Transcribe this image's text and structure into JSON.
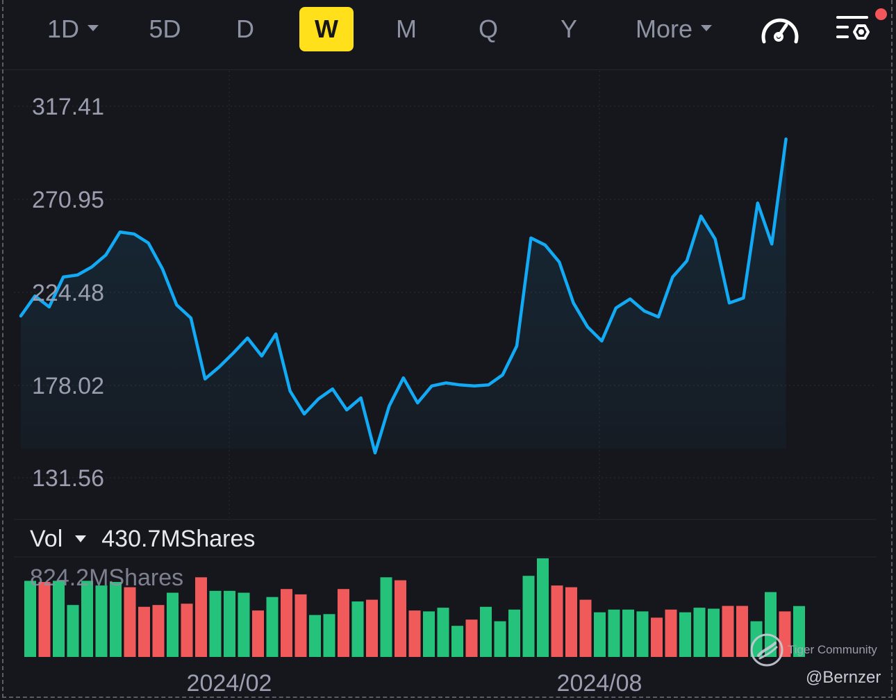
{
  "toolbar": {
    "tabs": [
      {
        "label": "1D",
        "dropdown": true
      },
      {
        "label": "5D"
      },
      {
        "label": "D"
      },
      {
        "label": "W",
        "active": true
      },
      {
        "label": "M"
      },
      {
        "label": "Q"
      },
      {
        "label": "Y"
      },
      {
        "label": "More",
        "dropdown": true
      }
    ],
    "icons": [
      "speedometer-icon",
      "settings-list-icon"
    ],
    "notification_dot_color": "#f2555a"
  },
  "volume_panel": {
    "label": "Vol",
    "current": "430.7MShares",
    "max_label": "824.2MShares"
  },
  "watermark": {
    "brand": "Tiger Community",
    "handle": "@Bernzer"
  },
  "chart_data": {
    "type": "line",
    "price_axis": {
      "ticks": [
        "317.41",
        "270.95",
        "224.48",
        "178.02",
        "131.56"
      ],
      "ylim": [
        131.56,
        317.41
      ]
    },
    "time_axis": {
      "ticks": [
        "2024/02",
        "2024/08"
      ]
    },
    "line_color": "#13aaf5",
    "prices": [
      212.5,
      222.5,
      217,
      232,
      233,
      237,
      243,
      254.5,
      253.5,
      249,
      236,
      218,
      211.5,
      181,
      187,
      194,
      201.5,
      192.5,
      203.5,
      175,
      163.5,
      171,
      176,
      165.5,
      171.5,
      144,
      167.5,
      181.5,
      169,
      177.5,
      179,
      178,
      177.5,
      178,
      183,
      197.5,
      251.5,
      248,
      239.5,
      219,
      207,
      200,
      216.5,
      221,
      215,
      212,
      232,
      240,
      262.5,
      251,
      219,
      221.5,
      269,
      248.5,
      301
    ],
    "volume_colors": {
      "up": "#24c27b",
      "down": "#f05a5a"
    },
    "volumes": [
      {
        "v": 753,
        "c": "up"
      },
      {
        "v": 742,
        "c": "down"
      },
      {
        "v": 753,
        "c": "up"
      },
      {
        "v": 514,
        "c": "up"
      },
      {
        "v": 753,
        "c": "up"
      },
      {
        "v": 707,
        "c": "up"
      },
      {
        "v": 742,
        "c": "up"
      },
      {
        "v": 690,
        "c": "down"
      },
      {
        "v": 496,
        "c": "down"
      },
      {
        "v": 514,
        "c": "down"
      },
      {
        "v": 636,
        "c": "up"
      },
      {
        "v": 527,
        "c": "down"
      },
      {
        "v": 788,
        "c": "down"
      },
      {
        "v": 654,
        "c": "up"
      },
      {
        "v": 654,
        "c": "up"
      },
      {
        "v": 636,
        "c": "up"
      },
      {
        "v": 460,
        "c": "down"
      },
      {
        "v": 593,
        "c": "up"
      },
      {
        "v": 672,
        "c": "down"
      },
      {
        "v": 619,
        "c": "down"
      },
      {
        "v": 415,
        "c": "up"
      },
      {
        "v": 424,
        "c": "up"
      },
      {
        "v": 672,
        "c": "down"
      },
      {
        "v": 549,
        "c": "up"
      },
      {
        "v": 566,
        "c": "down"
      },
      {
        "v": 788,
        "c": "up"
      },
      {
        "v": 759,
        "c": "down"
      },
      {
        "v": 460,
        "c": "down"
      },
      {
        "v": 451,
        "c": "up"
      },
      {
        "v": 487,
        "c": "up"
      },
      {
        "v": 308,
        "c": "up"
      },
      {
        "v": 370,
        "c": "down"
      },
      {
        "v": 496,
        "c": "up"
      },
      {
        "v": 353,
        "c": "up"
      },
      {
        "v": 469,
        "c": "up"
      },
      {
        "v": 803,
        "c": "up"
      },
      {
        "v": 976,
        "c": "up"
      },
      {
        "v": 707,
        "c": "down"
      },
      {
        "v": 690,
        "c": "down"
      },
      {
        "v": 566,
        "c": "down"
      },
      {
        "v": 442,
        "c": "up"
      },
      {
        "v": 469,
        "c": "up"
      },
      {
        "v": 469,
        "c": "up"
      },
      {
        "v": 451,
        "c": "up"
      },
      {
        "v": 389,
        "c": "down"
      },
      {
        "v": 469,
        "c": "down"
      },
      {
        "v": 442,
        "c": "up"
      },
      {
        "v": 487,
        "c": "up"
      },
      {
        "v": 478,
        "c": "up"
      },
      {
        "v": 505,
        "c": "down"
      },
      {
        "v": 505,
        "c": "down"
      },
      {
        "v": 353,
        "c": "up"
      },
      {
        "v": 642,
        "c": "up"
      },
      {
        "v": 451,
        "c": "down"
      },
      {
        "v": 504,
        "c": "up"
      }
    ]
  }
}
